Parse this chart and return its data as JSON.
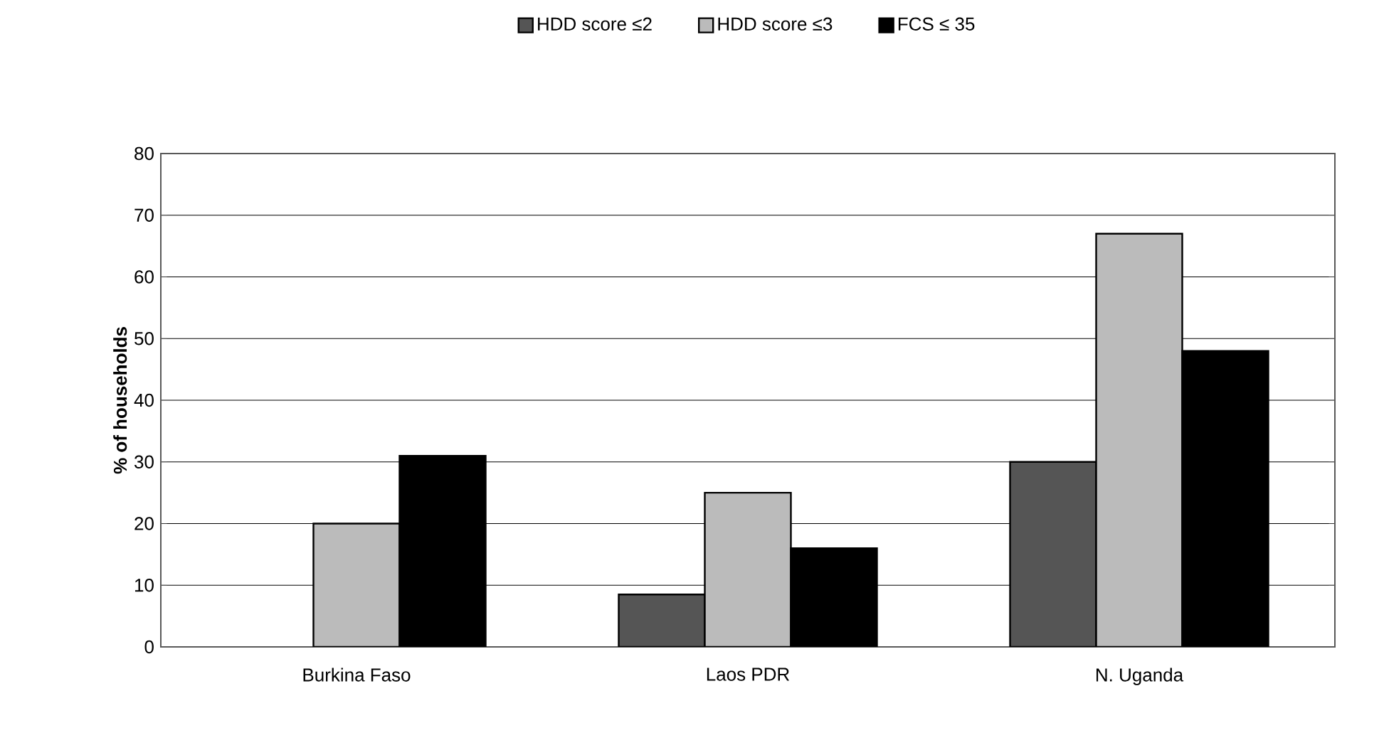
{
  "chart_data": {
    "type": "bar",
    "ylabel": "% of households",
    "categories": [
      "Burkina Faso",
      "Laos PDR",
      "N. Uganda"
    ],
    "series": [
      {
        "name": "HDD score ≤2",
        "color": "#555555",
        "values": [
          null,
          8.5,
          30
        ]
      },
      {
        "name": "HDD score ≤3",
        "color": "#bbbbbb",
        "values": [
          20,
          25,
          67
        ]
      },
      {
        "name": "FCS ≤ 35",
        "color": "#000000",
        "values": [
          31,
          16,
          48
        ]
      }
    ],
    "ylim": [
      0,
      80
    ],
    "yticks": [
      0,
      10,
      20,
      30,
      40,
      50,
      60,
      70,
      80
    ],
    "grid": "y",
    "legend": "top"
  }
}
